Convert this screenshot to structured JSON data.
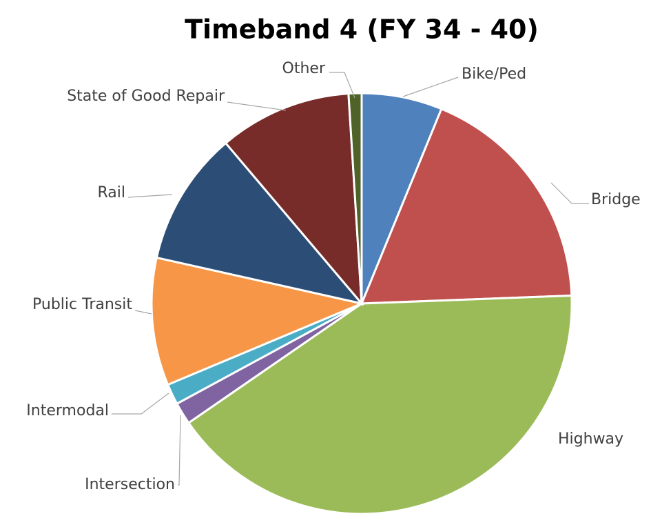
{
  "chart_data": {
    "type": "pie",
    "title": "Timeband 4 (FY 34 - 40)",
    "categories": [
      "Bike/Ped",
      "Bridge",
      "Highway",
      "Intersection",
      "Intermodal",
      "Public Transit",
      "Rail",
      "State of Good Repair",
      "Other"
    ],
    "values": [
      6.2,
      18.2,
      41,
      1.7,
      1.6,
      9.8,
      10.3,
      10.2,
      1
    ],
    "colors": [
      "#4f81bd",
      "#c0504d",
      "#9bbb59",
      "#8064a2",
      "#4bacc6",
      "#f79646",
      "#2c4d75",
      "#772c2a",
      "#4f6228"
    ]
  }
}
